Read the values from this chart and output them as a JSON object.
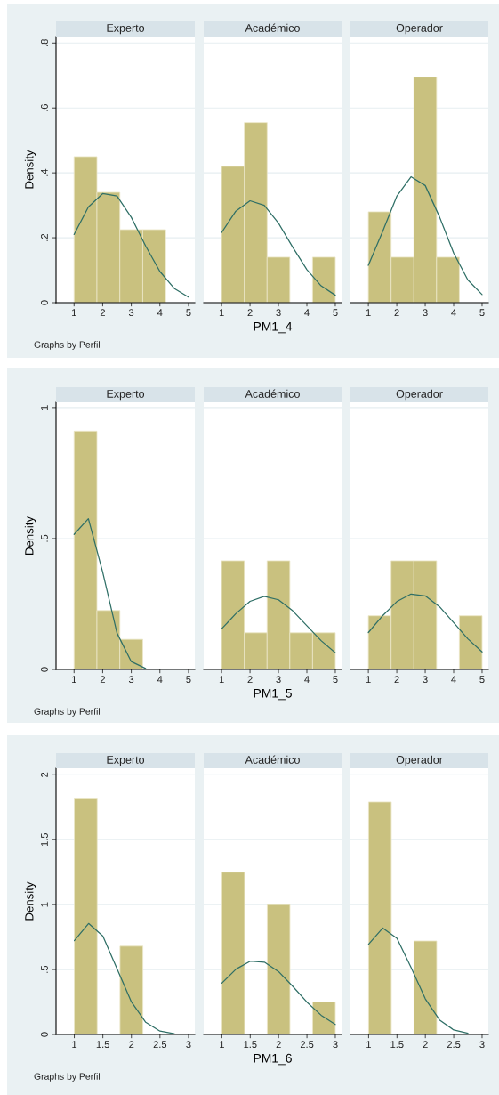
{
  "chart_data": [
    {
      "type": "histogram",
      "title": "Experto",
      "ylabel": "Density",
      "annotations": [
        "Graphs by Perfil"
      ],
      "bins": [
        1,
        1.8,
        2.6,
        3.4,
        4.2,
        5
      ],
      "values": [
        0.45,
        0.34,
        0.225,
        0.225,
        0
      ],
      "color": "#c9c17f",
      "xlim": [
        0.37,
        5.22
      ],
      "xticks": [
        1,
        2,
        3,
        4,
        5
      ],
      "ylim": [
        0,
        0.82
      ],
      "yticks": [
        {
          "value": 0,
          "label": "0"
        },
        {
          "value": 0.2,
          "label": ".2"
        },
        {
          "value": 0.4,
          "label": ".4"
        },
        {
          "value": 0.6,
          "label": ".6"
        },
        {
          "value": 0.8,
          "label": ".8"
        }
      ],
      "grid": "y",
      "series": [
        {
          "type": "line",
          "color": "#2f6f66",
          "x": [
            1,
            1.5,
            2,
            2.5,
            3,
            3.5,
            4,
            4.5,
            5
          ],
          "values": [
            0.21,
            0.295,
            0.336,
            0.329,
            0.263,
            0.175,
            0.096,
            0.044,
            0.017
          ]
        }
      ]
    },
    {
      "type": "histogram",
      "title": "Académico",
      "xlabel": "PM1_4",
      "bins": [
        1,
        1.8,
        2.6,
        3.4,
        4.2,
        5
      ],
      "values": [
        0.42,
        0.555,
        0.14,
        0,
        0.14
      ],
      "color": "#c9c17f",
      "xlim": [
        0.37,
        5.22
      ],
      "xticks": [
        1,
        2,
        3,
        4,
        5
      ],
      "ylim": [
        0,
        0.82
      ],
      "yticks": [
        {
          "value": 0,
          "label": null
        },
        {
          "value": 0.2,
          "label": null
        },
        {
          "value": 0.4,
          "label": null
        },
        {
          "value": 0.6,
          "label": null
        },
        {
          "value": 0.8,
          "label": null
        }
      ],
      "grid": "y",
      "tick_labels": "x",
      "series": [
        {
          "type": "line",
          "color": "#2f6f66",
          "x": [
            1,
            1.5,
            2,
            2.5,
            3,
            3.5,
            4,
            4.5,
            5
          ],
          "values": [
            0.216,
            0.282,
            0.314,
            0.3,
            0.245,
            0.171,
            0.102,
            0.052,
            0.023
          ]
        }
      ]
    },
    {
      "type": "histogram",
      "title": "Operador",
      "bins": [
        1,
        1.8,
        2.6,
        3.4,
        4.2,
        5
      ],
      "values": [
        0.28,
        0.14,
        0.695,
        0.14,
        0
      ],
      "color": "#c9c17f",
      "xlim": [
        0.37,
        5.22
      ],
      "xticks": [
        1,
        2,
        3,
        4,
        5
      ],
      "ylim": [
        0,
        0.82
      ],
      "yticks": [
        {
          "value": 0,
          "label": null
        },
        {
          "value": 0.2,
          "label": null
        },
        {
          "value": 0.4,
          "label": null
        },
        {
          "value": 0.6,
          "label": null
        },
        {
          "value": 0.8,
          "label": null
        }
      ],
      "grid": "y",
      "tick_labels": "x",
      "series": [
        {
          "type": "line",
          "color": "#2f6f66",
          "x": [
            1,
            1.5,
            2,
            2.5,
            3,
            3.5,
            4,
            4.5,
            5
          ],
          "values": [
            0.115,
            0.219,
            0.328,
            0.388,
            0.361,
            0.265,
            0.153,
            0.07,
            0.025
          ]
        }
      ]
    },
    {
      "type": "histogram",
      "title": "Experto",
      "ylabel": "Density",
      "annotations": [
        "Graphs by Perfil"
      ],
      "bins": [
        1,
        1.8,
        2.6,
        3.4,
        4.2,
        5
      ],
      "values": [
        0.91,
        0.225,
        0.115,
        0,
        0
      ],
      "color": "#c9c17f",
      "xlim": [
        0.37,
        5.22
      ],
      "xticks": [
        1,
        2,
        3,
        4,
        5
      ],
      "ylim": [
        0,
        1.02
      ],
      "yticks": [
        {
          "value": 0,
          "label": "0"
        },
        {
          "value": 0.5,
          "label": ".5"
        },
        {
          "value": 1,
          "label": "1"
        }
      ],
      "grid": "y",
      "series": [
        {
          "type": "line",
          "color": "#2f6f66",
          "x": [
            1,
            1.5,
            2,
            2.5,
            3,
            3.5
          ],
          "values": [
            0.516,
            0.576,
            0.372,
            0.139,
            0.03,
            0.004
          ]
        }
      ]
    },
    {
      "type": "histogram",
      "title": "Académico",
      "xlabel": "PM1_5",
      "bins": [
        1,
        1.8,
        2.6,
        3.4,
        4.2,
        5
      ],
      "values": [
        0.415,
        0.14,
        0.415,
        0.14,
        0.14
      ],
      "color": "#c9c17f",
      "xlim": [
        0.37,
        5.22
      ],
      "xticks": [
        1,
        2,
        3,
        4,
        5
      ],
      "ylim": [
        0,
        1.02
      ],
      "yticks": [
        {
          "value": 0,
          "label": null
        },
        {
          "value": 0.5,
          "label": null
        },
        {
          "value": 1,
          "label": null
        }
      ],
      "grid": "y",
      "tick_labels": "x",
      "series": [
        {
          "type": "line",
          "color": "#2f6f66",
          "x": [
            1,
            1.5,
            2,
            2.5,
            3,
            3.5,
            4,
            4.5,
            5
          ],
          "values": [
            0.155,
            0.213,
            0.26,
            0.279,
            0.266,
            0.224,
            0.167,
            0.11,
            0.064
          ]
        }
      ]
    },
    {
      "type": "histogram",
      "title": "Operador",
      "bins": [
        1,
        1.8,
        2.6,
        3.4,
        4.2,
        5
      ],
      "values": [
        0.205,
        0.415,
        0.415,
        0,
        0.205
      ],
      "color": "#c9c17f",
      "xlim": [
        0.37,
        5.22
      ],
      "xticks": [
        1,
        2,
        3,
        4,
        5
      ],
      "ylim": [
        0,
        1.02
      ],
      "yticks": [
        {
          "value": 0,
          "label": null
        },
        {
          "value": 0.5,
          "label": null
        },
        {
          "value": 1,
          "label": null
        }
      ],
      "grid": "y",
      "tick_labels": "x",
      "series": [
        {
          "type": "line",
          "color": "#2f6f66",
          "x": [
            1,
            1.5,
            2,
            2.5,
            3,
            3.5,
            4,
            4.5,
            5
          ],
          "values": [
            0.141,
            0.205,
            0.259,
            0.288,
            0.281,
            0.24,
            0.179,
            0.117,
            0.067
          ]
        }
      ]
    },
    {
      "type": "histogram",
      "title": "Experto",
      "ylabel": "Density",
      "annotations": [
        "Graphs by Perfil"
      ],
      "bins": [
        1,
        1.4,
        1.8,
        2.2,
        2.6,
        3
      ],
      "values": [
        1.82,
        0,
        0.68,
        0,
        0
      ],
      "color": "#c9c17f",
      "xlim": [
        0.68,
        3.11
      ],
      "xticks": [
        1,
        1.5,
        2,
        2.5,
        3
      ],
      "ylim": [
        0,
        2.05
      ],
      "yticks": [
        {
          "value": 0,
          "label": "0"
        },
        {
          "value": 0.5,
          "label": ".5"
        },
        {
          "value": 1,
          "label": "1"
        },
        {
          "value": 1.5,
          "label": "1.5"
        },
        {
          "value": 2,
          "label": "2"
        }
      ],
      "grid": "y",
      "series": [
        {
          "type": "line",
          "color": "#2f6f66",
          "x": [
            1,
            1.25,
            1.5,
            1.75,
            2,
            2.25,
            2.5,
            2.75
          ],
          "values": [
            0.723,
            0.855,
            0.757,
            0.504,
            0.251,
            0.094,
            0.026,
            0.006
          ]
        }
      ]
    },
    {
      "type": "histogram",
      "title": "Académico",
      "xlabel": "PM1_6",
      "bins": [
        1,
        1.4,
        1.8,
        2.2,
        2.6,
        3
      ],
      "values": [
        1.25,
        0,
        1.0,
        0,
        0.25
      ],
      "color": "#c9c17f",
      "xlim": [
        0.68,
        3.11
      ],
      "xticks": [
        1,
        1.5,
        2,
        2.5,
        3
      ],
      "ylim": [
        0,
        2.05
      ],
      "yticks": [
        {
          "value": 0,
          "label": null
        },
        {
          "value": 0.5,
          "label": null
        },
        {
          "value": 1,
          "label": null
        },
        {
          "value": 1.5,
          "label": null
        },
        {
          "value": 2,
          "label": null
        }
      ],
      "grid": "y",
      "tick_labels": "x",
      "series": [
        {
          "type": "line",
          "color": "#2f6f66",
          "x": [
            1,
            1.25,
            1.5,
            1.75,
            2,
            2.25,
            2.5,
            2.75,
            3
          ],
          "values": [
            0.395,
            0.503,
            0.564,
            0.557,
            0.484,
            0.37,
            0.249,
            0.148,
            0.077
          ]
        }
      ]
    },
    {
      "type": "histogram",
      "title": "Operador",
      "bins": [
        1,
        1.4,
        1.8,
        2.2,
        2.6,
        3
      ],
      "values": [
        1.79,
        0,
        0.72,
        0,
        0
      ],
      "color": "#c9c17f",
      "xlim": [
        0.68,
        3.11
      ],
      "xticks": [
        1,
        1.5,
        2,
        2.5,
        3
      ],
      "ylim": [
        0,
        2.05
      ],
      "yticks": [
        {
          "value": 0,
          "label": null
        },
        {
          "value": 0.5,
          "label": null
        },
        {
          "value": 1,
          "label": null
        },
        {
          "value": 1.5,
          "label": null
        },
        {
          "value": 2,
          "label": null
        }
      ],
      "grid": "y",
      "tick_labels": "x",
      "series": [
        {
          "type": "line",
          "color": "#2f6f66",
          "x": [
            1,
            1.25,
            1.5,
            1.75,
            2,
            2.25,
            2.5,
            2.75
          ],
          "values": [
            0.695,
            0.82,
            0.74,
            0.514,
            0.274,
            0.112,
            0.035,
            0.009
          ]
        }
      ]
    }
  ]
}
